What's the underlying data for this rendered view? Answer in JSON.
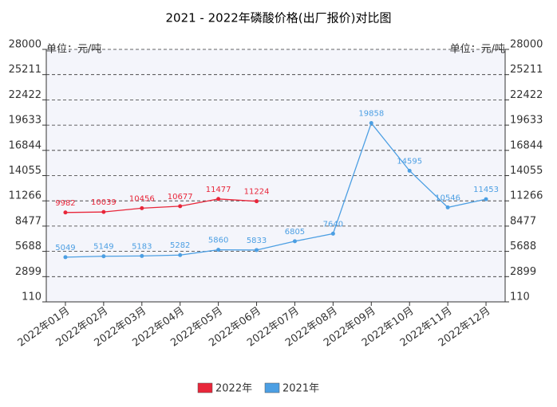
{
  "chart_data": {
    "type": "line",
    "title": "2021 - 2022年磷酸价格(出厂报价)对比图",
    "ylabel": "单位：元/吨",
    "y2label": "单位：元/吨",
    "categories": [
      "2022年01月",
      "2022年02月",
      "2022年03月",
      "2022年04月",
      "2022年05月",
      "2022年06月",
      "2022年07月",
      "2022年08月",
      "2022年09月",
      "2022年10月",
      "2022年11月",
      "2022年12月"
    ],
    "series": [
      {
        "name": "2022年",
        "color": "#e8263a",
        "values": [
          9982,
          10039,
          10456,
          10677,
          11477,
          11224,
          null,
          null,
          null,
          null,
          null,
          null
        ]
      },
      {
        "name": "2021年",
        "color": "#4c9fe3",
        "values": [
          5049,
          5149,
          5183,
          5282,
          5860,
          5833,
          6805,
          7640,
          19858,
          14595,
          10546,
          11453
        ]
      }
    ],
    "ylim": [
      110,
      28000
    ],
    "yticks": [
      110,
      2899,
      5688,
      8477,
      11266,
      14055,
      16844,
      19633,
      22422,
      25211,
      28000
    ],
    "y2lim": [
      110,
      28000
    ],
    "y2ticks": [
      110,
      2899,
      5688,
      8477,
      11266,
      14055,
      16844,
      19633,
      22422,
      25211,
      28000
    ],
    "grid": true,
    "legend": "bottom"
  }
}
